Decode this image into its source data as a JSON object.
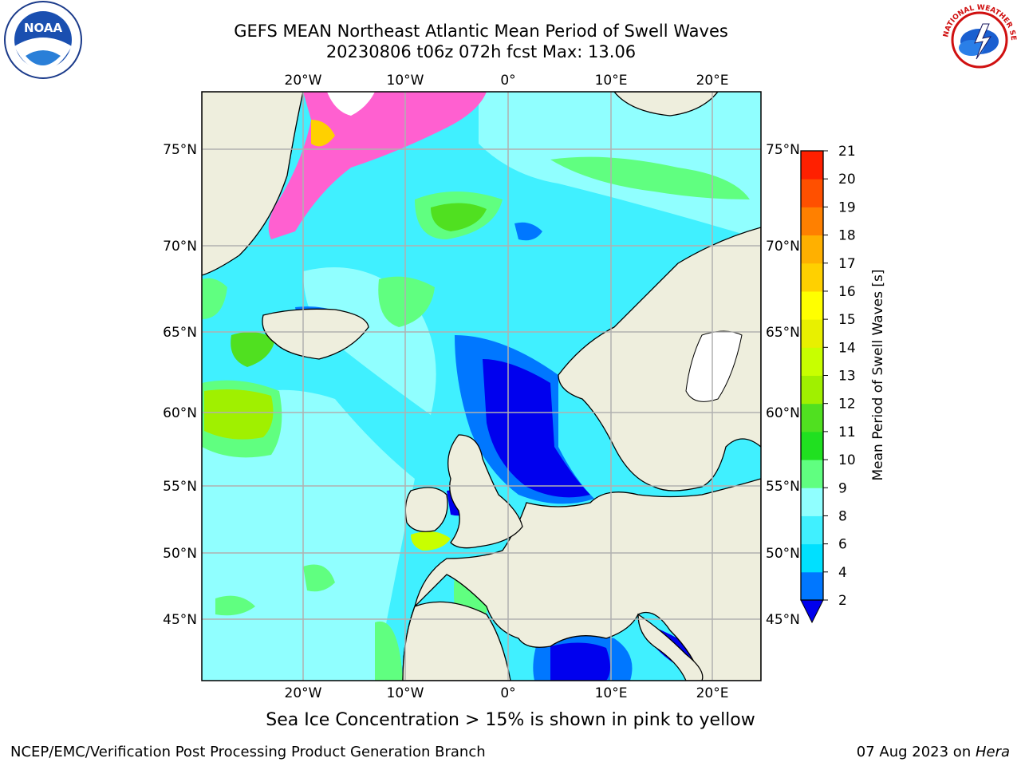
{
  "title": {
    "line1": "GEFS MEAN Northeast Atlantic Mean Period of Swell Waves",
    "line2": "20230806 t06z 072h fcst   Max: 13.06"
  },
  "map": {
    "lon_labels": [
      "20°W",
      "10°W",
      "0°",
      "10°E",
      "20°E"
    ],
    "lon_values": [
      -20,
      -10,
      0,
      10,
      20
    ],
    "lat_labels": [
      "45°N",
      "50°N",
      "55°N",
      "60°N",
      "65°N",
      "70°N",
      "75°N"
    ],
    "lat_values": [
      45,
      50,
      55,
      60,
      65,
      70,
      75
    ],
    "extent": {
      "lon_min": -30,
      "lon_max": 25,
      "lat_min": 41,
      "lat_max": 78
    }
  },
  "colorbar": {
    "label": "Mean Period of Swell Waves [s]",
    "ticks": [
      "2",
      "4",
      "6",
      "8",
      "9",
      "10",
      "11",
      "12",
      "13",
      "14",
      "15",
      "16",
      "17",
      "18",
      "19",
      "20",
      "21"
    ],
    "colors": [
      "#0077ff",
      "#00e0ff",
      "#40f0ff",
      "#90ffff",
      "#60ff80",
      "#20e020",
      "#50e020",
      "#a0f000",
      "#c8ff00",
      "#e8f000",
      "#ffff00",
      "#ffd000",
      "#ffb000",
      "#ff8000",
      "#ff5000",
      "#ff2000"
    ],
    "under_color": "#0000ee"
  },
  "colors": {
    "land": "#eeeedd",
    "grid": "#b0b0b0",
    "ocean_base": "#40f0ff"
  },
  "note": "Sea Ice Concentration > 15% is shown in pink to yellow",
  "footer": {
    "left": "NCEP/EMC/Verification Post Processing Product Generation Branch",
    "right_date": "07 Aug 2023 on ",
    "right_host": "Hera"
  },
  "logos": {
    "noaa_text": "NOAA",
    "nws_text": "NATIONAL WEATHER SERVICE"
  },
  "icons": {
    "noaa": "noaa-logo-icon",
    "nws": "nws-logo-icon"
  }
}
